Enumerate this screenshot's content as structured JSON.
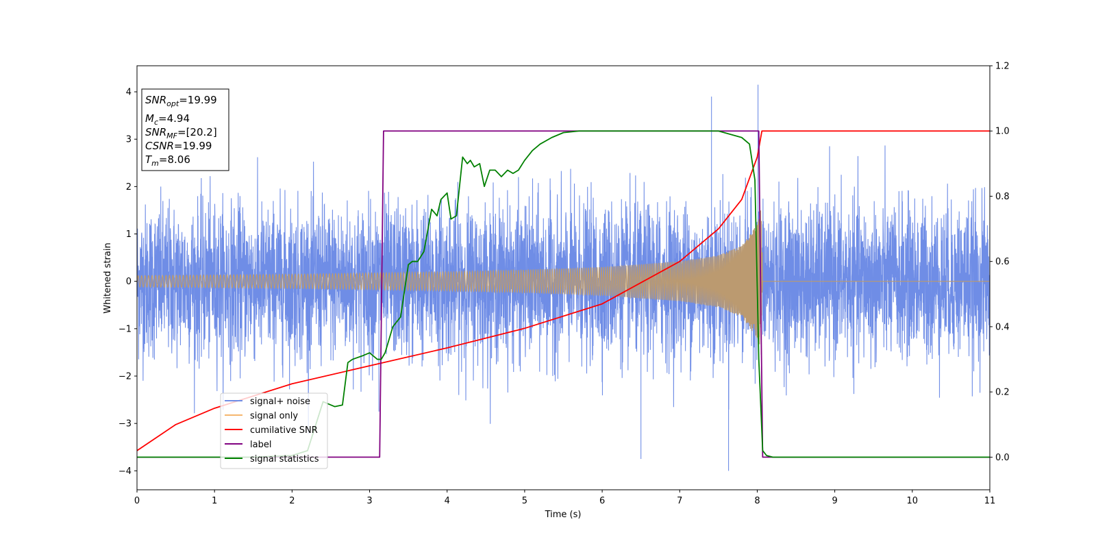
{
  "chart_data": {
    "type": "line",
    "xlabel": "Time (s)",
    "ylabel": "Whitened strain",
    "xlim": [
      0,
      11
    ],
    "ylim_left": [
      -4.4,
      4.55
    ],
    "ylim_right": [
      -0.1,
      1.2
    ],
    "x_ticks": [
      "0",
      "1",
      "2",
      "3",
      "4",
      "5",
      "6",
      "7",
      "8",
      "9",
      "10",
      "11"
    ],
    "y_ticks_left": [
      "−4",
      "−3",
      "−2",
      "−1",
      "0",
      "1",
      "2",
      "3",
      "4"
    ],
    "y_ticks_right": [
      "0.0",
      "0.2",
      "0.4",
      "0.6",
      "0.8",
      "1.0",
      "1.2"
    ],
    "legend_position": "lower-left",
    "colors": {
      "signal_noise": "#6f8de6",
      "signal_only": "#f5b66e",
      "overlap": "#bb9a70",
      "cumulative_snr": "#ff0000",
      "label": "#800080",
      "statistics": "#008000"
    },
    "info_box": {
      "snr_opt": {
        "base": "SNR",
        "sub": "opt",
        "value": "=19.99"
      },
      "mc": {
        "base": "M",
        "sub": "c",
        "value": "=4.94"
      },
      "snr_mf": {
        "base": "SNR",
        "sub": "MF",
        "value": "=[20.2]"
      },
      "csnr": {
        "base": "CSNR",
        "sub": "",
        "value": "=19.99"
      },
      "tm": {
        "base": "T",
        "sub": "m",
        "value": "=8.06"
      }
    },
    "series": [
      {
        "name": "signal+ noise",
        "axis": "left",
        "kind": "noise",
        "sigma": 0.8,
        "x_range": [
          0,
          11
        ],
        "observed_max": 4.15,
        "observed_min": -4.0
      },
      {
        "name": "signal only",
        "axis": "left",
        "kind": "chirp",
        "envelope_x": [
          0,
          2,
          4,
          5,
          6,
          7,
          7.5,
          7.8,
          8.0,
          8.06,
          8.07,
          11
        ],
        "envelope_y": [
          0.12,
          0.15,
          0.2,
          0.24,
          0.3,
          0.42,
          0.55,
          0.75,
          1.2,
          1.6,
          0,
          0
        ]
      },
      {
        "name": "cumilative SNR",
        "axis": "right",
        "x": [
          0,
          0.5,
          1,
          2,
          3,
          4,
          5,
          6,
          7,
          7.5,
          7.8,
          8.0,
          8.06,
          8.1,
          11
        ],
        "y": [
          0.02,
          0.1,
          0.15,
          0.225,
          0.28,
          0.335,
          0.395,
          0.47,
          0.6,
          0.7,
          0.79,
          0.92,
          1.0,
          1.0,
          1.0
        ]
      },
      {
        "name": "label",
        "axis": "right",
        "x": [
          0,
          3.13,
          3.18,
          8.02,
          8.07,
          11
        ],
        "y": [
          0,
          0,
          1,
          1,
          0,
          0
        ]
      },
      {
        "name": "signal statistics",
        "axis": "right",
        "x": [
          0,
          1.5,
          2.0,
          2.2,
          2.4,
          2.55,
          2.65,
          2.72,
          2.78,
          2.9,
          3.0,
          3.1,
          3.15,
          3.2,
          3.3,
          3.4,
          3.5,
          3.55,
          3.62,
          3.7,
          3.8,
          3.87,
          3.92,
          4.0,
          4.05,
          4.12,
          4.2,
          4.26,
          4.3,
          4.35,
          4.42,
          4.48,
          4.55,
          4.62,
          4.7,
          4.78,
          4.85,
          4.92,
          5.0,
          5.1,
          5.2,
          5.35,
          5.5,
          5.7,
          6.0,
          6.5,
          7.0,
          7.5,
          7.8,
          7.9,
          7.97,
          8.02,
          8.07,
          8.12,
          8.2,
          11
        ],
        "y": [
          0.0,
          0.0,
          0.005,
          0.02,
          0.17,
          0.155,
          0.16,
          0.29,
          0.3,
          0.31,
          0.32,
          0.3,
          0.3,
          0.32,
          0.4,
          0.43,
          0.59,
          0.6,
          0.6,
          0.63,
          0.76,
          0.74,
          0.79,
          0.81,
          0.73,
          0.74,
          0.92,
          0.9,
          0.91,
          0.89,
          0.9,
          0.83,
          0.88,
          0.88,
          0.86,
          0.88,
          0.87,
          0.88,
          0.91,
          0.94,
          0.96,
          0.98,
          0.995,
          1.0,
          1.0,
          1.0,
          1.0,
          1.0,
          0.98,
          0.96,
          0.85,
          0.3,
          0.02,
          0.005,
          0.0,
          0.0
        ]
      }
    ]
  }
}
